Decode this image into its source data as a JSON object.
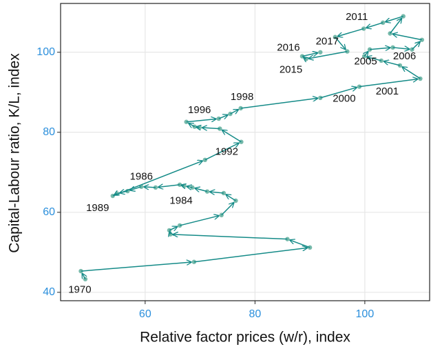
{
  "chart_data": {
    "type": "connected-scatter",
    "x_label": "Relative factor prices (w/r), index",
    "y_label": "Capital-Labour ratio, K/L, index",
    "x": [
      49.1,
      48.3,
      68.9,
      90.0,
      85.9,
      64.6,
      64.4,
      66.3,
      73.9,
      76.5,
      74.3,
      71.3,
      68.6,
      67.1,
      66.3,
      61.9,
      59.3,
      56.8,
      54.9,
      54.1,
      70.9,
      77.5,
      73.6,
      69.9,
      69.0,
      67.5,
      73.4,
      75.5,
      77.4,
      91.9,
      99.0,
      110.1,
      106.4,
      103.0,
      99.9,
      100.9,
      105.1,
      108.6,
      110.4,
      104.6,
      107.0,
      103.3,
      99.8,
      94.6,
      96.8,
      89.3,
      88.6,
      91.9
    ],
    "y": [
      43.3,
      45.3,
      47.6,
      51.2,
      53.3,
      54.5,
      55.5,
      56.7,
      59.3,
      62.9,
      64.8,
      65.2,
      66.2,
      66.6,
      66.9,
      66.2,
      66.4,
      65.3,
      64.7,
      64.1,
      73.1,
      77.6,
      80.9,
      81.2,
      81.4,
      82.6,
      83.4,
      84.6,
      86.0,
      88.6,
      91.4,
      93.4,
      96.7,
      97.9,
      99.0,
      100.7,
      101.2,
      100.7,
      103.1,
      104.7,
      109.0,
      107.4,
      105.9,
      103.8,
      100.2,
      98.3,
      99.0,
      100.0
    ],
    "labels": [
      "1970",
      null,
      null,
      null,
      null,
      null,
      null,
      null,
      null,
      null,
      null,
      null,
      null,
      null,
      "1984",
      null,
      "1986",
      null,
      null,
      "1989",
      null,
      null,
      "1992",
      null,
      null,
      null,
      "1996",
      null,
      "1998",
      null,
      "2000",
      "2001",
      null,
      null,
      null,
      "2005",
      "2006",
      null,
      null,
      null,
      null,
      "2011",
      null,
      null,
      null,
      "2015",
      "2016",
      "2017"
    ],
    "line_color": "#138a87",
    "point_color": "#5fae9c",
    "xlim": [
      44.6,
      111.8
    ],
    "ylim": [
      37.9,
      112.2
    ],
    "xticks": [
      60,
      80,
      100
    ],
    "yticks": [
      40,
      60,
      80,
      100
    ],
    "grid": true
  }
}
